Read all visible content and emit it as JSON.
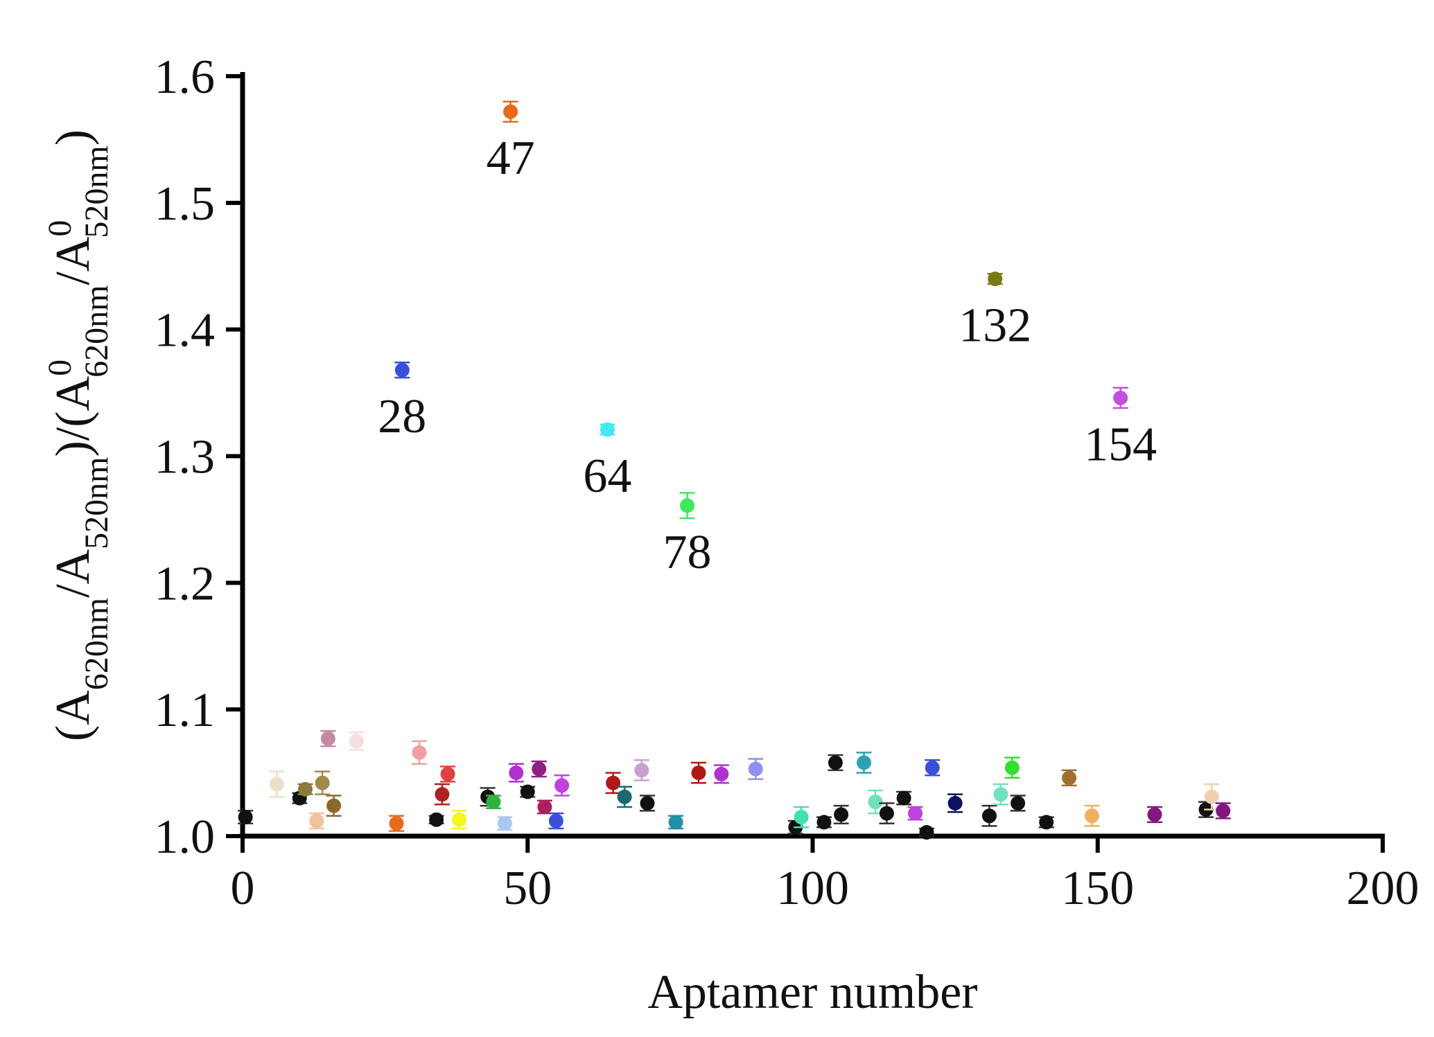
{
  "chart_data": {
    "type": "scatter",
    "xlabel": "Aptamer number",
    "ylabel": {
      "open": "(A",
      "sub1": "620nm",
      "mid1": "/A",
      "sub2": "520nm",
      "mid2": ")/(A",
      "sup3": "0",
      "sub3": "620nm",
      "mid3": "/A",
      "sup4": "0",
      "sub4": "520nm",
      "close": ")"
    },
    "xlim": [
      0,
      200
    ],
    "ylim": [
      1.0,
      1.6
    ],
    "xticks": [
      {
        "value": 0,
        "label": "0"
      },
      {
        "value": 50,
        "label": "50"
      },
      {
        "value": 100,
        "label": "100"
      },
      {
        "value": 150,
        "label": "150"
      },
      {
        "value": 200,
        "label": "200"
      }
    ],
    "yticks": [
      {
        "value": 1.0,
        "label": "1.0"
      },
      {
        "value": 1.1,
        "label": "1.1"
      },
      {
        "value": 1.2,
        "label": "1.2"
      },
      {
        "value": 1.3,
        "label": "1.3"
      },
      {
        "value": 1.4,
        "label": "1.4"
      },
      {
        "value": 1.5,
        "label": "1.5"
      },
      {
        "value": 1.6,
        "label": "1.6"
      }
    ],
    "points": [
      {
        "x": 47,
        "y": 1.572,
        "err": 0.008,
        "color": "#e8691b"
      },
      {
        "x": 28,
        "y": 1.368,
        "err": 0.006,
        "color": "#3a4fd8"
      },
      {
        "x": 64,
        "y": 1.321,
        "err": 0.004,
        "color": "#44e8f5"
      },
      {
        "x": 78,
        "y": 1.261,
        "err": 0.01,
        "color": "#3ee85a"
      },
      {
        "x": 132,
        "y": 1.44,
        "err": 0.004,
        "color": "#7a7a14"
      },
      {
        "x": 154,
        "y": 1.346,
        "err": 0.008,
        "color": "#c24fe0"
      },
      {
        "x": 0.5,
        "y": 1.015,
        "err": 0.005,
        "color": "#111111"
      },
      {
        "x": 6,
        "y": 1.041,
        "err": 0.01,
        "color": "#ece0cb"
      },
      {
        "x": 10,
        "y": 1.03,
        "err": 0.004,
        "color": "#111111"
      },
      {
        "x": 11,
        "y": 1.037,
        "err": 0.004,
        "color": "#8c7a3c"
      },
      {
        "x": 13,
        "y": 1.012,
        "err": 0.006,
        "color": "#f0c39a"
      },
      {
        "x": 14,
        "y": 1.042,
        "err": 0.009,
        "color": "#a08a4a"
      },
      {
        "x": 15,
        "y": 1.077,
        "err": 0.006,
        "color": "#c48aa2"
      },
      {
        "x": 16,
        "y": 1.024,
        "err": 0.008,
        "color": "#8a6a2c"
      },
      {
        "x": 20,
        "y": 1.075,
        "err": 0.007,
        "color": "#f4dede"
      },
      {
        "x": 27,
        "y": 1.01,
        "err": 0.006,
        "color": "#e8691b"
      },
      {
        "x": 31,
        "y": 1.066,
        "err": 0.009,
        "color": "#f0a0a0"
      },
      {
        "x": 34,
        "y": 1.013,
        "err": 0.003,
        "color": "#111111"
      },
      {
        "x": 35,
        "y": 1.033,
        "err": 0.008,
        "color": "#b02020"
      },
      {
        "x": 36,
        "y": 1.049,
        "err": 0.006,
        "color": "#e04040"
      },
      {
        "x": 38,
        "y": 1.013,
        "err": 0.007,
        "color": "#f5f520"
      },
      {
        "x": 43,
        "y": 1.031,
        "err": 0.007,
        "color": "#111111"
      },
      {
        "x": 44,
        "y": 1.027,
        "err": 0.005,
        "color": "#30b040"
      },
      {
        "x": 46,
        "y": 1.01,
        "err": 0.005,
        "color": "#a8c8f0"
      },
      {
        "x": 48,
        "y": 1.05,
        "err": 0.007,
        "color": "#b030d0"
      },
      {
        "x": 50,
        "y": 1.035,
        "err": 0.004,
        "color": "#111111"
      },
      {
        "x": 52,
        "y": 1.053,
        "err": 0.006,
        "color": "#902080"
      },
      {
        "x": 53,
        "y": 1.023,
        "err": 0.005,
        "color": "#a82060"
      },
      {
        "x": 55,
        "y": 1.012,
        "err": 0.006,
        "color": "#3a4fd8"
      },
      {
        "x": 56,
        "y": 1.04,
        "err": 0.008,
        "color": "#c040e0"
      },
      {
        "x": 65,
        "y": 1.042,
        "err": 0.008,
        "color": "#b01818"
      },
      {
        "x": 67,
        "y": 1.031,
        "err": 0.008,
        "color": "#1a6a70"
      },
      {
        "x": 70,
        "y": 1.052,
        "err": 0.008,
        "color": "#c8a0d0"
      },
      {
        "x": 71,
        "y": 1.026,
        "err": 0.006,
        "color": "#111111"
      },
      {
        "x": 76,
        "y": 1.011,
        "err": 0.005,
        "color": "#2090a8"
      },
      {
        "x": 80,
        "y": 1.05,
        "err": 0.008,
        "color": "#b01818"
      },
      {
        "x": 84,
        "y": 1.049,
        "err": 0.007,
        "color": "#b030d0"
      },
      {
        "x": 90,
        "y": 1.053,
        "err": 0.008,
        "color": "#9090f0"
      },
      {
        "x": 97,
        "y": 1.007,
        "err": 0.005,
        "color": "#111111"
      },
      {
        "x": 98,
        "y": 1.015,
        "err": 0.008,
        "color": "#40e0b0"
      },
      {
        "x": 102,
        "y": 1.011,
        "err": 0.004,
        "color": "#111111"
      },
      {
        "x": 104,
        "y": 1.058,
        "err": 0.006,
        "color": "#111111"
      },
      {
        "x": 105,
        "y": 1.017,
        "err": 0.007,
        "color": "#111111"
      },
      {
        "x": 109,
        "y": 1.058,
        "err": 0.008,
        "color": "#30a0b0"
      },
      {
        "x": 111,
        "y": 1.027,
        "err": 0.009,
        "color": "#70e0b8"
      },
      {
        "x": 113,
        "y": 1.018,
        "err": 0.008,
        "color": "#111111"
      },
      {
        "x": 116,
        "y": 1.03,
        "err": 0.005,
        "color": "#111111"
      },
      {
        "x": 118,
        "y": 1.018,
        "err": 0.005,
        "color": "#c040e0"
      },
      {
        "x": 120,
        "y": 1.003,
        "err": 0.003,
        "color": "#111111"
      },
      {
        "x": 121,
        "y": 1.054,
        "err": 0.006,
        "color": "#3a4fd8"
      },
      {
        "x": 125,
        "y": 1.026,
        "err": 0.007,
        "color": "#101060"
      },
      {
        "x": 131,
        "y": 1.016,
        "err": 0.008,
        "color": "#111111"
      },
      {
        "x": 133,
        "y": 1.033,
        "err": 0.008,
        "color": "#70e0c0"
      },
      {
        "x": 135,
        "y": 1.054,
        "err": 0.008,
        "color": "#30e030"
      },
      {
        "x": 136,
        "y": 1.026,
        "err": 0.006,
        "color": "#111111"
      },
      {
        "x": 141,
        "y": 1.011,
        "err": 0.004,
        "color": "#111111"
      },
      {
        "x": 145,
        "y": 1.046,
        "err": 0.006,
        "color": "#a07030"
      },
      {
        "x": 149,
        "y": 1.016,
        "err": 0.008,
        "color": "#f0b060"
      },
      {
        "x": 160,
        "y": 1.017,
        "err": 0.006,
        "color": "#801880"
      },
      {
        "x": 169,
        "y": 1.021,
        "err": 0.006,
        "color": "#111111"
      },
      {
        "x": 170,
        "y": 1.031,
        "err": 0.01,
        "color": "#f0d0b0"
      },
      {
        "x": 172,
        "y": 1.02,
        "err": 0.006,
        "color": "#801880"
      }
    ],
    "annotations": [
      {
        "x": 47,
        "y": 1.572,
        "label": "47"
      },
      {
        "x": 28,
        "y": 1.368,
        "label": "28"
      },
      {
        "x": 64,
        "y": 1.321,
        "label": "64"
      },
      {
        "x": 78,
        "y": 1.261,
        "label": "78"
      },
      {
        "x": 132,
        "y": 1.44,
        "label": "132"
      },
      {
        "x": 154,
        "y": 1.346,
        "label": "154"
      }
    ],
    "grid": false,
    "legend": "none"
  }
}
